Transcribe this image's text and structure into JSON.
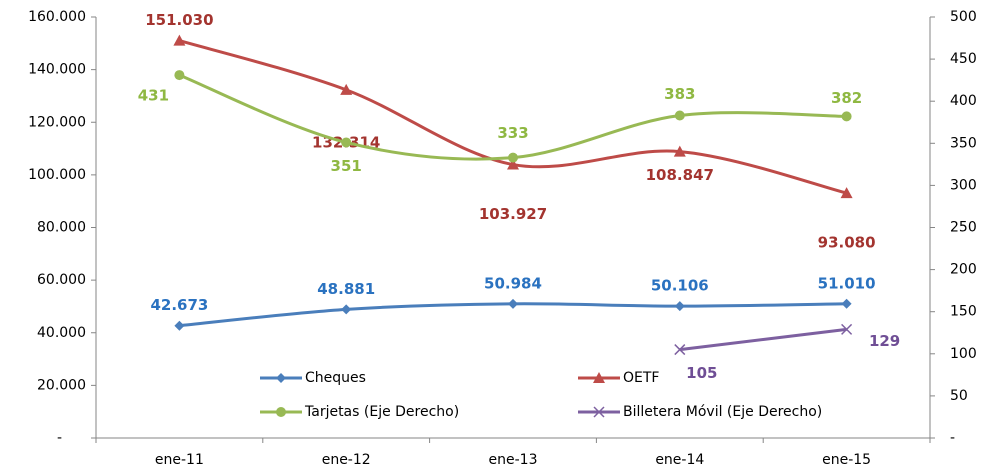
{
  "chart_data": {
    "type": "line",
    "categories": [
      "ene-11",
      "ene-12",
      "ene-13",
      "ene-14",
      "ene-15"
    ],
    "series": [
      {
        "name": "Cheques",
        "color": "#4a7ebb",
        "marker": "diamond",
        "values": [
          42673,
          48881,
          50984,
          50106,
          51010
        ],
        "value_labels": [
          "42.673",
          "48.881",
          "50.984",
          "50.106",
          "51.010"
        ]
      },
      {
        "name": "OETF",
        "color": "#be4b48",
        "marker": "triangle",
        "values": [
          151030,
          132314,
          103927,
          108847,
          93080
        ],
        "value_labels": [
          "151.030",
          "132.314",
          "103.927",
          "108.847",
          "93.080"
        ]
      },
      {
        "name": "Tarjetas (Eje Derecho)",
        "color": "#98b954",
        "marker": "circle",
        "axis": "y2",
        "values": [
          431,
          351,
          333,
          383,
          382
        ]
      },
      {
        "name": "Billetera Móvil (Eje Derecho)",
        "color": "#7d60a0",
        "marker": "x",
        "axis": "y2",
        "values": [
          null,
          null,
          null,
          105,
          129
        ]
      }
    ],
    "ylim": [
      0,
      160000
    ],
    "yticks": [
      {
        "value": 0,
        "label": "-"
      },
      {
        "value": 20000,
        "label": "20.000"
      },
      {
        "value": 40000,
        "label": "40.000"
      },
      {
        "value": 60000,
        "label": "60.000"
      },
      {
        "value": 80000,
        "label": "80.000"
      },
      {
        "value": 100000,
        "label": "100.000"
      },
      {
        "value": 120000,
        "label": "120.000"
      },
      {
        "value": 140000,
        "label": "140.000"
      },
      {
        "value": 160000,
        "label": "160.000"
      }
    ],
    "y2lim": [
      0,
      500
    ],
    "y2ticks": [
      {
        "value": 0,
        "label": "-"
      },
      50,
      100,
      150,
      200,
      250,
      300,
      350,
      400,
      450,
      500
    ],
    "legend": "bottom"
  }
}
